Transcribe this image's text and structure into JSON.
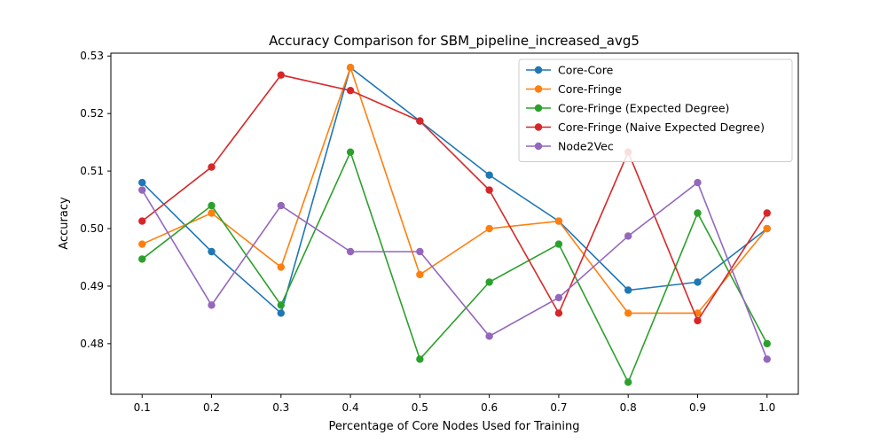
{
  "chart_data": {
    "type": "line",
    "title": "Accuracy Comparison for SBM_pipeline_increased_avg5",
    "xlabel": "Percentage of Core Nodes Used for Training",
    "ylabel": "Accuracy",
    "x": [
      0.1,
      0.2,
      0.3,
      0.4,
      0.5,
      0.6,
      0.7,
      0.8,
      0.9,
      1.0
    ],
    "x_tick_labels": [
      "0.1",
      "0.2",
      "0.3",
      "0.4",
      "0.5",
      "0.6",
      "0.7",
      "0.8",
      "0.9",
      "1.0"
    ],
    "y_ticks": [
      0.48,
      0.49,
      0.5,
      0.51,
      0.52,
      0.53
    ],
    "y_tick_labels": [
      "0.48",
      "0.49",
      "0.50",
      "0.51",
      "0.52",
      "0.53"
    ],
    "xlim": [
      0.055,
      1.045
    ],
    "ylim": [
      0.4712,
      0.5305
    ],
    "grid": false,
    "legend_position": "top-right",
    "series": [
      {
        "name": "Core-Core",
        "color": "#1f77b4",
        "values": [
          0.508,
          0.496,
          0.4853,
          0.528,
          0.5187,
          0.5093,
          0.5013,
          0.4893,
          0.4907,
          0.5
        ]
      },
      {
        "name": "Core-Fringe",
        "color": "#ff7f0e",
        "values": [
          0.4973,
          0.5027,
          0.4933,
          0.528,
          0.492,
          0.5,
          0.5013,
          0.4853,
          0.4853,
          0.5
        ]
      },
      {
        "name": "Core-Fringe (Expected Degree)",
        "color": "#2ca02c",
        "values": [
          0.4947,
          0.504,
          0.4867,
          0.5133,
          0.4773,
          0.4907,
          0.4973,
          0.4733,
          0.5027,
          0.48
        ]
      },
      {
        "name": "Core-Fringe (Naive Expected Degree)",
        "color": "#d62728",
        "values": [
          0.5013,
          0.5107,
          0.5267,
          0.524,
          0.5187,
          0.5067,
          0.4853,
          0.5133,
          0.484,
          0.5027
        ]
      },
      {
        "name": "Node2Vec",
        "color": "#9467bd",
        "values": [
          0.5067,
          0.4867,
          0.504,
          0.496,
          0.496,
          0.4813,
          0.488,
          0.4987,
          0.508,
          0.4773
        ]
      }
    ]
  }
}
